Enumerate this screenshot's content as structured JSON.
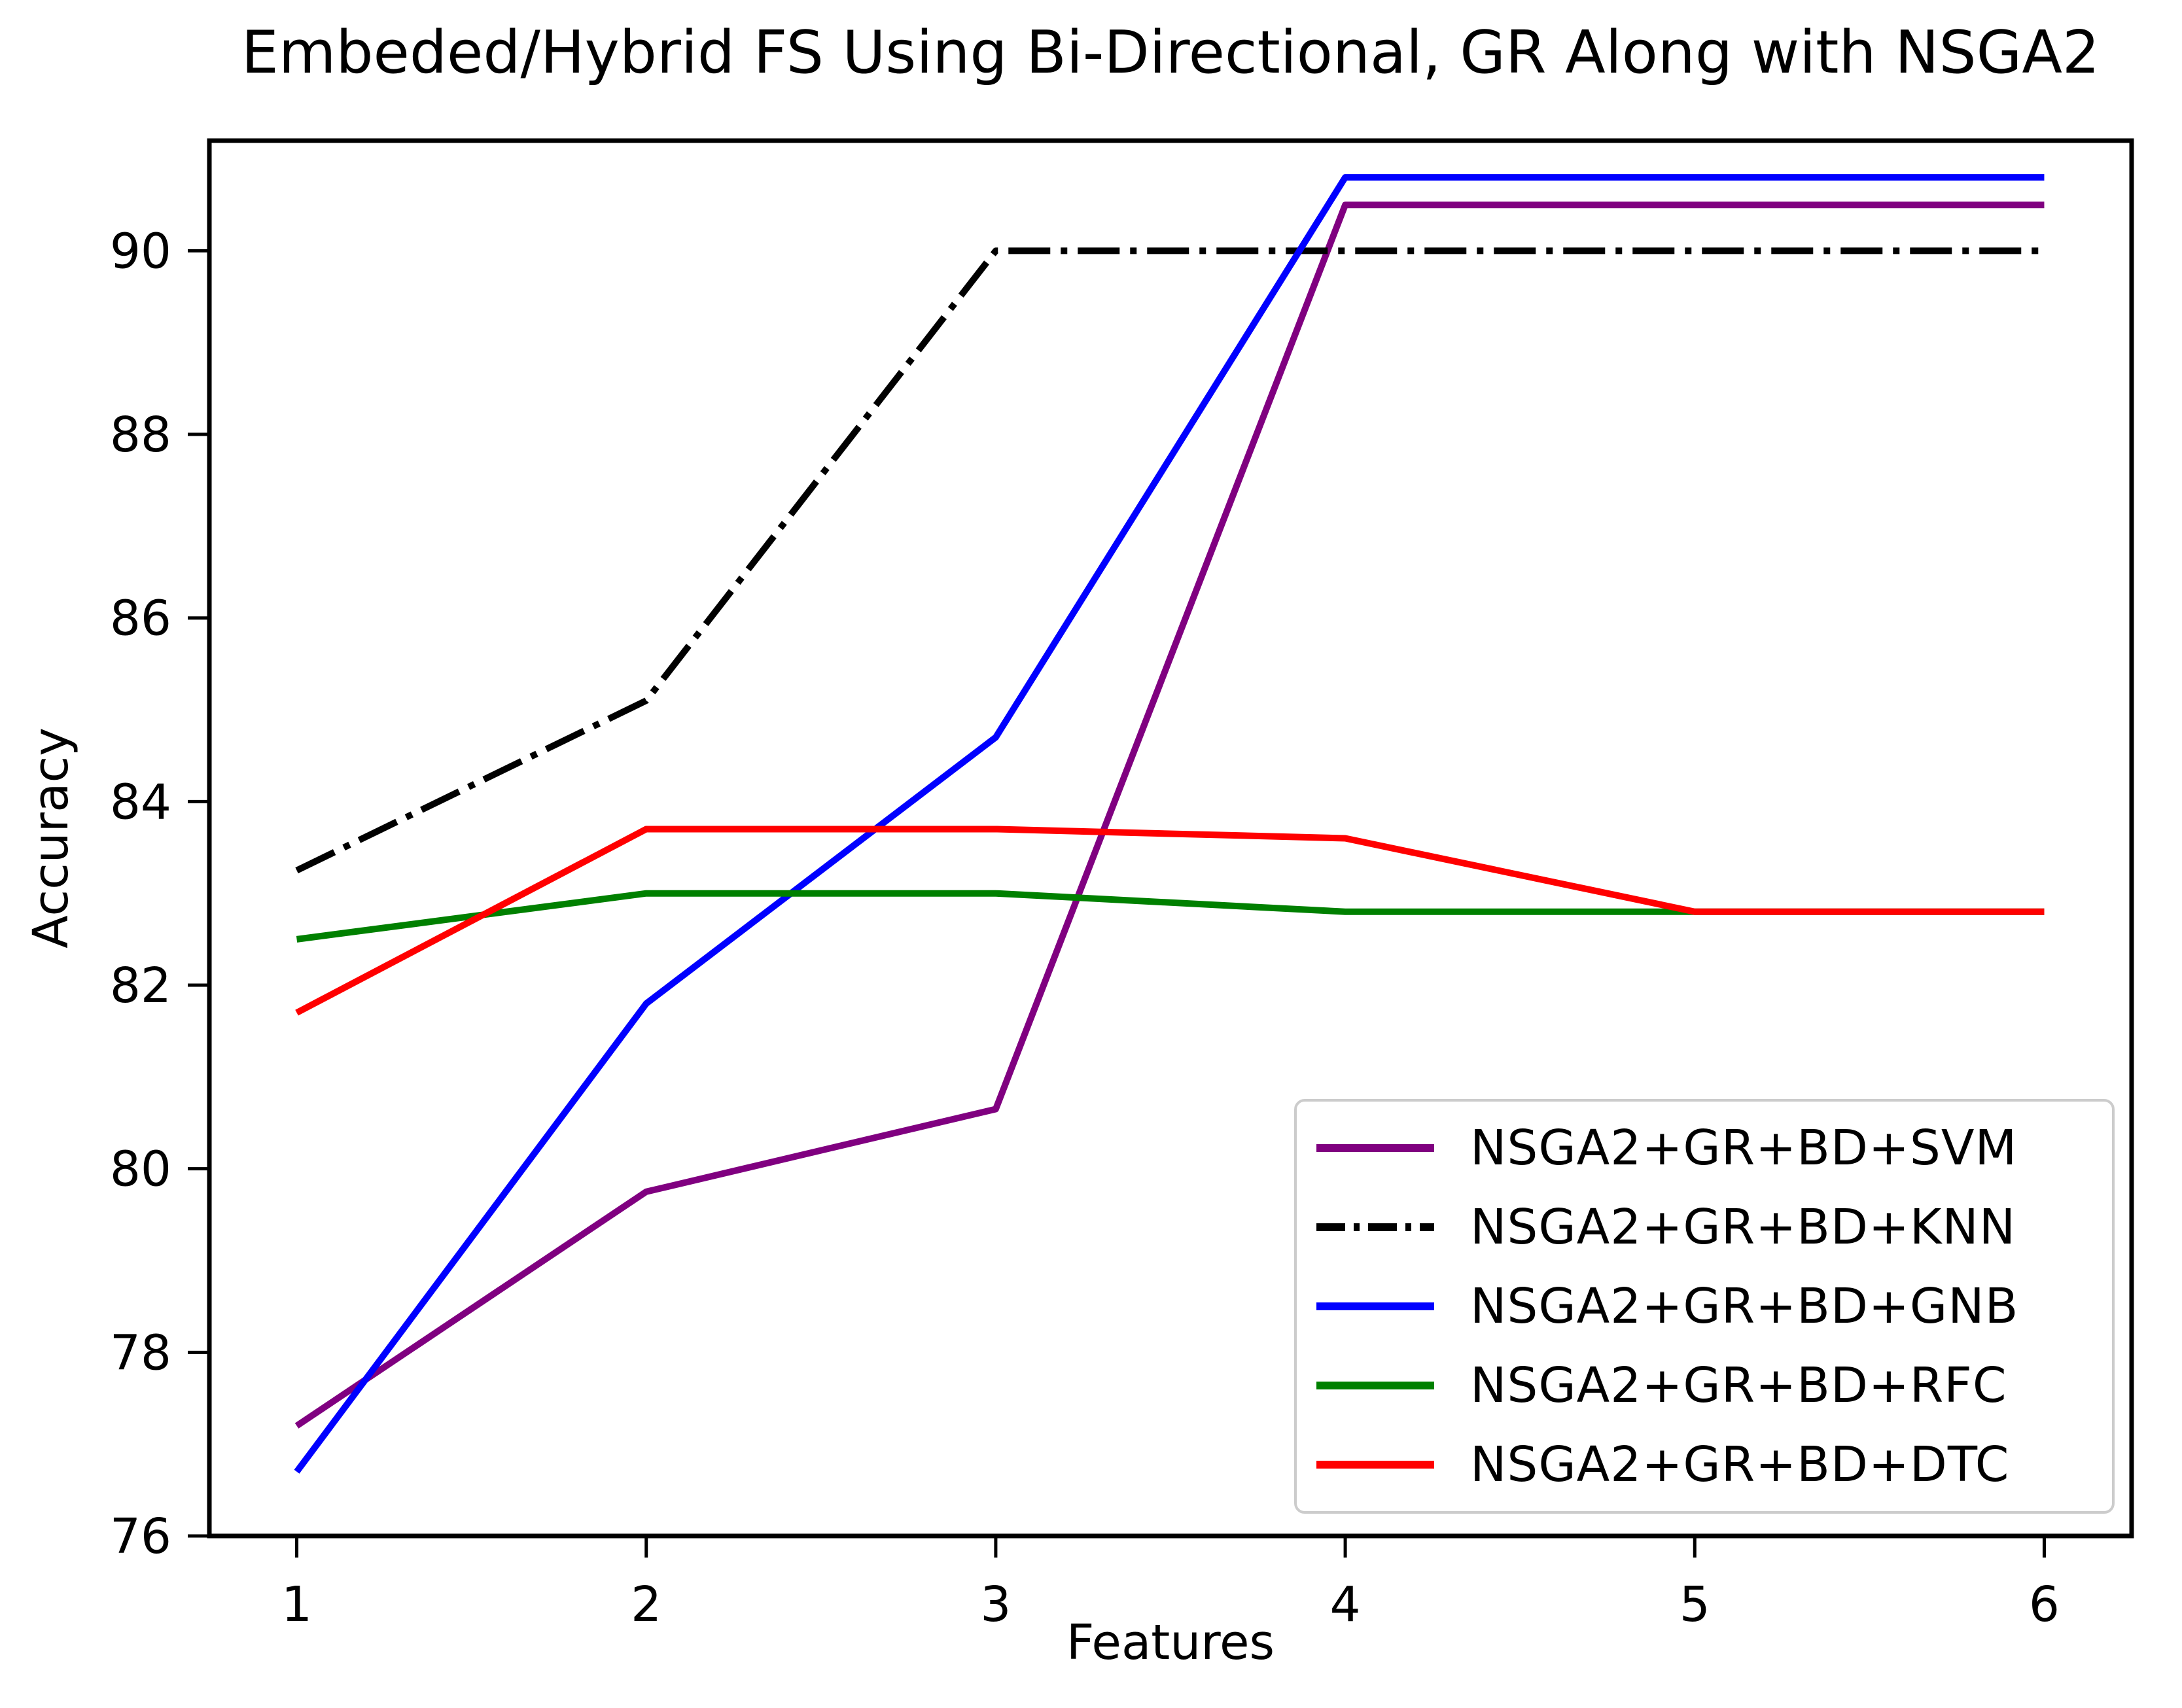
{
  "style": {
    "background": "#ffffff",
    "spine_color": "#000000",
    "legend_border_color": "#cccccc",
    "text_color": "#000000"
  },
  "chart_data": {
    "type": "line",
    "title": "Embeded/Hybrid FS Using Bi-Directional, GR Along with NSGA2",
    "xlabel": "Features",
    "ylabel": "Accuracy",
    "x": [
      1,
      2,
      3,
      4,
      5,
      6
    ],
    "xticks": [
      1,
      2,
      3,
      4,
      5,
      6
    ],
    "yticks": [
      76,
      78,
      80,
      82,
      84,
      86,
      88,
      90
    ],
    "xlim": [
      0.75,
      6.25
    ],
    "ylim": [
      76,
      91.2
    ],
    "grid": false,
    "legend_position": "lower right",
    "series": [
      {
        "name": "NSGA2+GR+BD+SVM",
        "color": "#800080",
        "style": "solid",
        "values": [
          77.2,
          79.75,
          80.65,
          90.5,
          90.5,
          90.5
        ]
      },
      {
        "name": "NSGA2+GR+BD+KNN",
        "color": "#000000",
        "style": "dashdot",
        "values": [
          83.25,
          85.1,
          90.0,
          90.0,
          90.0,
          90.0
        ]
      },
      {
        "name": "NSGA2+GR+BD+GNB",
        "color": "#0000ff",
        "style": "solid",
        "values": [
          76.7,
          81.8,
          84.7,
          90.8,
          90.8,
          90.8
        ]
      },
      {
        "name": "NSGA2+GR+BD+RFC",
        "color": "#008000",
        "style": "solid",
        "values": [
          82.5,
          83.0,
          83.0,
          82.8,
          82.8,
          82.8
        ]
      },
      {
        "name": "NSGA2+GR+BD+DTC",
        "color": "#ff0000",
        "style": "solid",
        "values": [
          81.7,
          83.7,
          83.7,
          83.6,
          82.8,
          82.8
        ]
      }
    ]
  }
}
